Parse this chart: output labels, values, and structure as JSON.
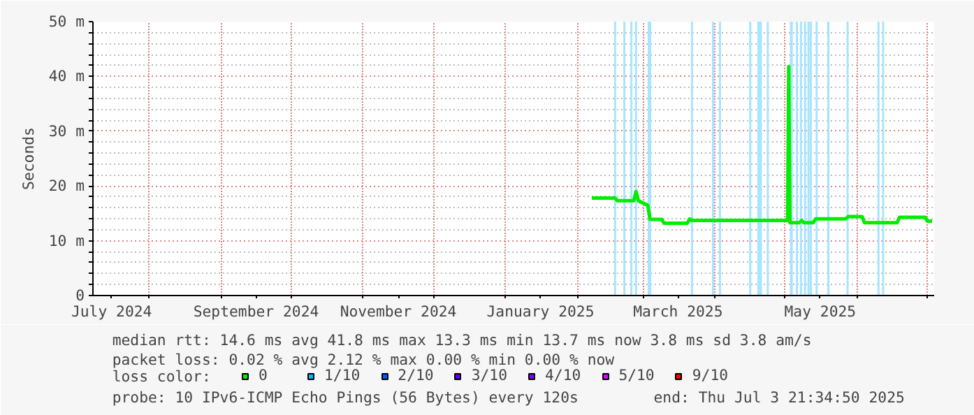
{
  "chart_data": {
    "type": "line",
    "ylabel": "Seconds",
    "x": [
      "2025-02-07",
      "2025-02-17",
      "2025-02-18",
      "2025-02-25",
      "2025-02-26",
      "2025-02-27",
      "2025-03-03",
      "2025-03-04",
      "2025-03-05",
      "2025-03-09",
      "2025-03-10",
      "2025-03-20",
      "2025-03-21",
      "2025-03-22",
      "2025-05-02",
      "2025-05-02T12:00",
      "2025-05-03",
      "2025-05-03T12:00",
      "2025-05-07",
      "2025-05-08",
      "2025-05-09",
      "2025-05-13",
      "2025-05-14",
      "2025-05-27",
      "2025-05-28",
      "2025-06-03",
      "2025-06-04",
      "2025-06-18",
      "2025-06-19",
      "2025-06-30",
      "2025-07-01",
      "2025-07-03"
    ],
    "series": [
      {
        "name": "0",
        "color": "#00ee00",
        "values": [
          17.8,
          17.8,
          17.3,
          17.3,
          19.0,
          17.3,
          16.5,
          13.9,
          13.9,
          13.9,
          13.2,
          13.2,
          14.0,
          13.7,
          13.7,
          41.8,
          13.3,
          13.3,
          13.3,
          13.7,
          13.3,
          13.3,
          14.0,
          14.0,
          14.4,
          14.4,
          13.3,
          13.3,
          14.3,
          14.3,
          13.6,
          13.6
        ]
      },
      {
        "name": "1/10",
        "color": "#00b8ff",
        "values": [
          null,
          null,
          null,
          null,
          null,
          null,
          null,
          null,
          null,
          null,
          null,
          null,
          null,
          null,
          null,
          null,
          null,
          null,
          null,
          null,
          null,
          null,
          null,
          null,
          null,
          null,
          null,
          null,
          null,
          null,
          null,
          null
        ]
      },
      {
        "name": "2/10",
        "color": "#0059ff",
        "values": [
          null,
          null,
          null,
          null,
          null,
          null,
          null,
          null,
          null,
          null,
          null,
          null,
          null,
          null,
          null,
          null,
          null,
          null,
          null,
          null,
          null,
          null,
          null,
          null,
          null,
          null,
          null,
          null,
          null,
          null,
          null,
          null
        ]
      },
      {
        "name": "3/10",
        "color": "#5e00ff",
        "values": [
          null,
          null,
          null,
          null,
          null,
          null,
          null,
          null,
          null,
          null,
          null,
          null,
          null,
          null,
          null,
          null,
          null,
          null,
          null,
          null,
          null,
          null,
          null,
          null,
          null,
          null,
          null,
          null,
          null,
          null,
          null,
          null
        ]
      },
      {
        "name": "4/10",
        "color": "#7e00ff",
        "values": [
          null,
          null,
          null,
          null,
          null,
          null,
          null,
          null,
          null,
          null,
          null,
          null,
          null,
          null,
          null,
          null,
          null,
          null,
          null,
          null,
          null,
          null,
          null,
          null,
          null,
          null,
          null,
          null,
          null,
          null,
          null,
          null
        ]
      },
      {
        "name": "5/10",
        "color": "#dd00ff",
        "values": [
          null,
          null,
          null,
          null,
          null,
          null,
          null,
          null,
          null,
          null,
          null,
          null,
          null,
          null,
          null,
          null,
          null,
          null,
          null,
          null,
          null,
          null,
          null,
          null,
          null,
          null,
          null,
          null,
          null,
          null,
          null,
          null
        ]
      },
      {
        "name": "9/10",
        "color": "#ff0000",
        "values": [
          null,
          null,
          null,
          null,
          null,
          null,
          null,
          null,
          null,
          null,
          null,
          null,
          null,
          null,
          null,
          null,
          null,
          null,
          null,
          null,
          null,
          null,
          null,
          null,
          null,
          null,
          null,
          null,
          null,
          null,
          null,
          null
        ]
      }
    ],
    "legend_title": "loss color:",
    "legend": "bottom",
    "grid": true,
    "line_style": "solid",
    "xlim": [
      "2024-07-08",
      "2025-07-03T21:34"
    ],
    "ylim": [
      0,
      50
    ],
    "yticks": [
      {
        "value": 0,
        "label": "0"
      },
      {
        "value": 2,
        "label": null
      },
      {
        "value": 4,
        "label": null
      },
      {
        "value": 6,
        "label": null
      },
      {
        "value": 8,
        "label": null
      },
      {
        "value": 10,
        "label": "10 m"
      },
      {
        "value": 12,
        "label": null
      },
      {
        "value": 14,
        "label": null
      },
      {
        "value": 16,
        "label": null
      },
      {
        "value": 18,
        "label": null
      },
      {
        "value": 20,
        "label": "20 m"
      },
      {
        "value": 22,
        "label": null
      },
      {
        "value": 24,
        "label": null
      },
      {
        "value": 26,
        "label": null
      },
      {
        "value": 28,
        "label": null
      },
      {
        "value": 30,
        "label": "30 m"
      },
      {
        "value": 32,
        "label": null
      },
      {
        "value": 34,
        "label": null
      },
      {
        "value": 36,
        "label": null
      },
      {
        "value": 38,
        "label": null
      },
      {
        "value": 40,
        "label": "40 m"
      },
      {
        "value": 42,
        "label": null
      },
      {
        "value": 44,
        "label": null
      },
      {
        "value": 46,
        "label": null
      },
      {
        "value": 48,
        "label": null
      },
      {
        "value": 50,
        "label": "50 m"
      }
    ],
    "xticks": [
      {
        "value": "2024-07-16",
        "label": "July 2024"
      },
      {
        "value": "2024-08-01",
        "label": null
      },
      {
        "value": "2024-09-01",
        "label": null
      },
      {
        "value": "2024-09-16",
        "label": "September 2024"
      },
      {
        "value": "2024-10-01",
        "label": null
      },
      {
        "value": "2024-11-01",
        "label": null
      },
      {
        "value": "2024-11-16",
        "label": "November 2024"
      },
      {
        "value": "2024-12-01",
        "label": null
      },
      {
        "value": "2025-01-01",
        "label": null
      },
      {
        "value": "2025-01-16",
        "label": "January 2025"
      },
      {
        "value": "2025-02-01",
        "label": null
      },
      {
        "value": "2025-03-01",
        "label": null
      },
      {
        "value": "2025-03-16",
        "label": "March 2025"
      },
      {
        "value": "2025-04-01",
        "label": null
      },
      {
        "value": "2025-05-01",
        "label": null
      },
      {
        "value": "2025-05-16",
        "label": "May 2025"
      },
      {
        "value": "2025-06-01",
        "label": null
      },
      {
        "value": "2025-07-01",
        "label": null
      }
    ],
    "ref_lines": [
      {
        "axis": "x",
        "value": "2025-02-17",
        "color": "#a8e4ff"
      },
      {
        "axis": "x",
        "value": "2025-02-21",
        "color": "#a8e4ff"
      },
      {
        "axis": "x",
        "value": "2025-02-24",
        "color": "#a8e4ff"
      },
      {
        "axis": "x",
        "value": "2025-02-26",
        "color": "#a8e4ff"
      },
      {
        "axis": "x",
        "value": "2025-03-22",
        "color": "#a8e4ff"
      },
      {
        "axis": "x",
        "value": "2025-03-31",
        "color": "#a8e4ff"
      },
      {
        "axis": "x",
        "value": "2025-04-03",
        "color": "#a8e4ff"
      },
      {
        "axis": "x",
        "value": "2025-04-16",
        "color": "#a8e4ff"
      },
      {
        "axis": "x",
        "value": "2025-04-23T12:00",
        "color": "#a8e4ff"
      },
      {
        "axis": "x",
        "value": "2025-05-06",
        "color": "#a8e4ff"
      },
      {
        "axis": "x",
        "value": "2025-05-07T18:00",
        "color": "#a8e4ff"
      },
      {
        "axis": "x",
        "value": "2025-05-09T12:00",
        "color": "#a8e4ff"
      },
      {
        "axis": "x",
        "value": "2025-05-11",
        "color": "#a8e4ff"
      },
      {
        "axis": "x",
        "value": "2025-05-12",
        "color": "#a8e4ff"
      },
      {
        "axis": "x",
        "value": "2025-05-14T12:00",
        "color": "#a8e4ff"
      },
      {
        "axis": "x",
        "value": "2025-05-27T18:00",
        "color": "#a8e4ff"
      },
      {
        "axis": "x",
        "value": "2025-06-10",
        "color": "#a8e4ff"
      },
      {
        "axis": "x",
        "value": "2025-06-12",
        "color": "#a8e4ff"
      }
    ],
    "bands": [
      {
        "axis": "x",
        "from": "2025-03-03",
        "to": "2025-03-04T12:00",
        "color": "#a8e4ff"
      },
      {
        "axis": "x",
        "from": "2025-04-19",
        "to": "2025-04-21",
        "color": "#a8e4ff"
      },
      {
        "axis": "x",
        "from": "2025-05-03",
        "to": "2025-05-04T06:00",
        "color": "#a8e4ff"
      },
      {
        "axis": "x",
        "from": "2025-05-19",
        "to": "2025-05-20",
        "color": "#a8e4ff"
      }
    ],
    "annotations": [
      "median rtt:  14.6 ms avg  41.8 ms max  13.3 ms min  13.7 ms now  3.8 ms sd  3.8   am/s",
      "packet loss: 0.02 % avg  2.12 % max  0.00 % min  0.00 % now",
      "probe:       10 IPv6-ICMP Echo Pings (56 Bytes) every 120s",
      "end: Thu Jul  3 21:34:50 2025"
    ]
  }
}
